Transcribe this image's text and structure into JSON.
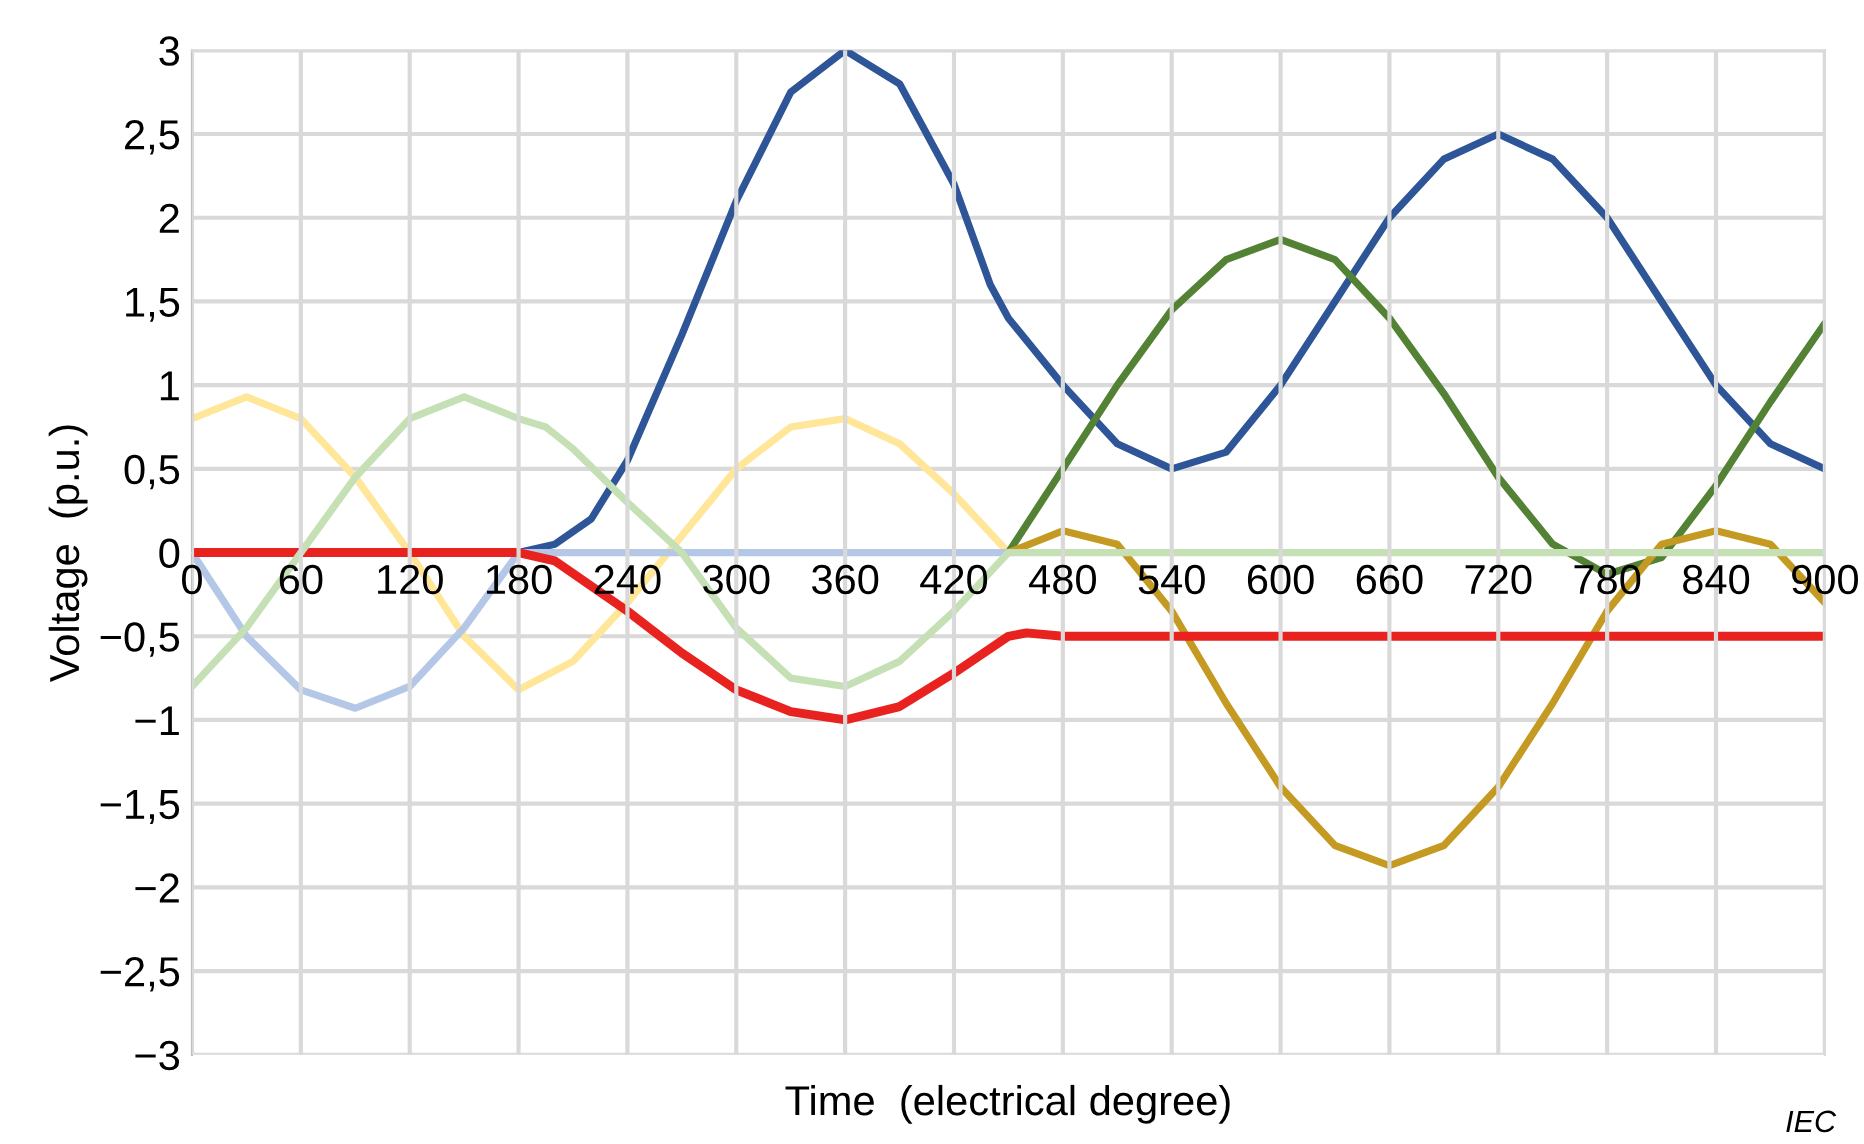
{
  "chart_data": {
    "type": "line",
    "xlabel": "Time  (electrical degree)",
    "ylabel": "Voltage  (p.u.)",
    "annotations": [
      "IEC"
    ],
    "xlim": [
      0,
      900
    ],
    "xticks": [
      0,
      60,
      120,
      180,
      240,
      300,
      360,
      420,
      480,
      540,
      600,
      660,
      720,
      780,
      840,
      900
    ],
    "ylim": [
      -3,
      3
    ],
    "yticks": [
      {
        "value": -3,
        "label": "−3"
      },
      {
        "value": -2.5,
        "label": "−2,5"
      },
      {
        "value": -2,
        "label": "−2"
      },
      {
        "value": -1.5,
        "label": "−1,5"
      },
      {
        "value": -1,
        "label": "−1"
      },
      {
        "value": -0.5,
        "label": "−0,5"
      },
      0,
      {
        "value": 0.5,
        "label": "0,5"
      },
      1,
      {
        "value": 1.5,
        "label": "1,5"
      },
      2,
      {
        "value": 2.5,
        "label": "2,5"
      },
      3
    ],
    "grid": true,
    "line_style": "solid",
    "series": [
      {
        "color": "#ffe699",
        "x": [
          0,
          30,
          60,
          90,
          120,
          150,
          180,
          210,
          240,
          270,
          300,
          330,
          360,
          390,
          420,
          450
        ],
        "values": [
          0.8,
          0.93,
          0.8,
          0.45,
          0,
          -0.5,
          -0.82,
          -0.65,
          -0.3,
          0.1,
          0.5,
          0.75,
          0.8,
          0.65,
          0.35,
          0
        ]
      },
      {
        "color": "#2e5597",
        "x": [
          180,
          200,
          220,
          240,
          270,
          300,
          330,
          360,
          390,
          420,
          440,
          450,
          480,
          510,
          540,
          570,
          600,
          630,
          660,
          690,
          720,
          750,
          780,
          810,
          840,
          870,
          900
        ],
        "values": [
          0,
          0.05,
          0.2,
          0.55,
          1.3,
          2.1,
          2.75,
          3,
          2.8,
          2.2,
          1.6,
          1.4,
          1.0,
          0.65,
          0.5,
          0.6,
          1.0,
          1.5,
          2.0,
          2.35,
          2.5,
          2.35,
          2.0,
          1.5,
          1.0,
          0.65,
          0.5
        ]
      },
      {
        "color": "#548235",
        "x": [
          450,
          480,
          510,
          540,
          570,
          600,
          630,
          660,
          690,
          720,
          750,
          780,
          810,
          840,
          870,
          900
        ],
        "values": [
          0,
          0.5,
          1.0,
          1.45,
          1.75,
          1.87,
          1.75,
          1.4,
          0.95,
          0.45,
          0.05,
          -0.13,
          -0.03,
          0.4,
          0.9,
          1.37
        ]
      },
      {
        "color": "#c49a22",
        "x": [
          450,
          480,
          510,
          540,
          570,
          600,
          630,
          660,
          690,
          720,
          750,
          780,
          810,
          840,
          870,
          900
        ],
        "values": [
          0,
          0.13,
          0.05,
          -0.35,
          -0.9,
          -1.4,
          -1.75,
          -1.87,
          -1.75,
          -1.4,
          -0.9,
          -0.35,
          0.05,
          0.13,
          0.05,
          -0.3
        ]
      },
      {
        "color": "#b4c7e7",
        "x": [
          0,
          30,
          60,
          90,
          120,
          150,
          180,
          450
        ],
        "values": [
          0,
          -0.5,
          -0.82,
          -0.93,
          -0.8,
          -0.45,
          0,
          0
        ]
      },
      {
        "color": "#e8231f",
        "x": [
          0,
          180,
          200,
          240,
          270,
          300,
          330,
          360,
          390,
          420,
          450,
          460,
          480,
          900
        ],
        "values": [
          0,
          0,
          -0.05,
          -0.35,
          -0.6,
          -0.82,
          -0.95,
          -1,
          -0.92,
          -0.72,
          -0.5,
          -0.48,
          -0.5,
          -0.5
        ]
      },
      {
        "color": "#c5e0b4",
        "x": [
          0,
          30,
          60,
          90,
          120,
          150,
          180,
          195,
          210,
          240,
          270,
          300,
          330,
          360,
          390,
          420,
          450,
          900
        ],
        "values": [
          -0.8,
          -0.45,
          0,
          0.45,
          0.8,
          0.93,
          0.8,
          0.75,
          0.62,
          0.3,
          0,
          -0.45,
          -0.75,
          -0.8,
          -0.65,
          -0.35,
          0,
          0
        ]
      }
    ]
  }
}
